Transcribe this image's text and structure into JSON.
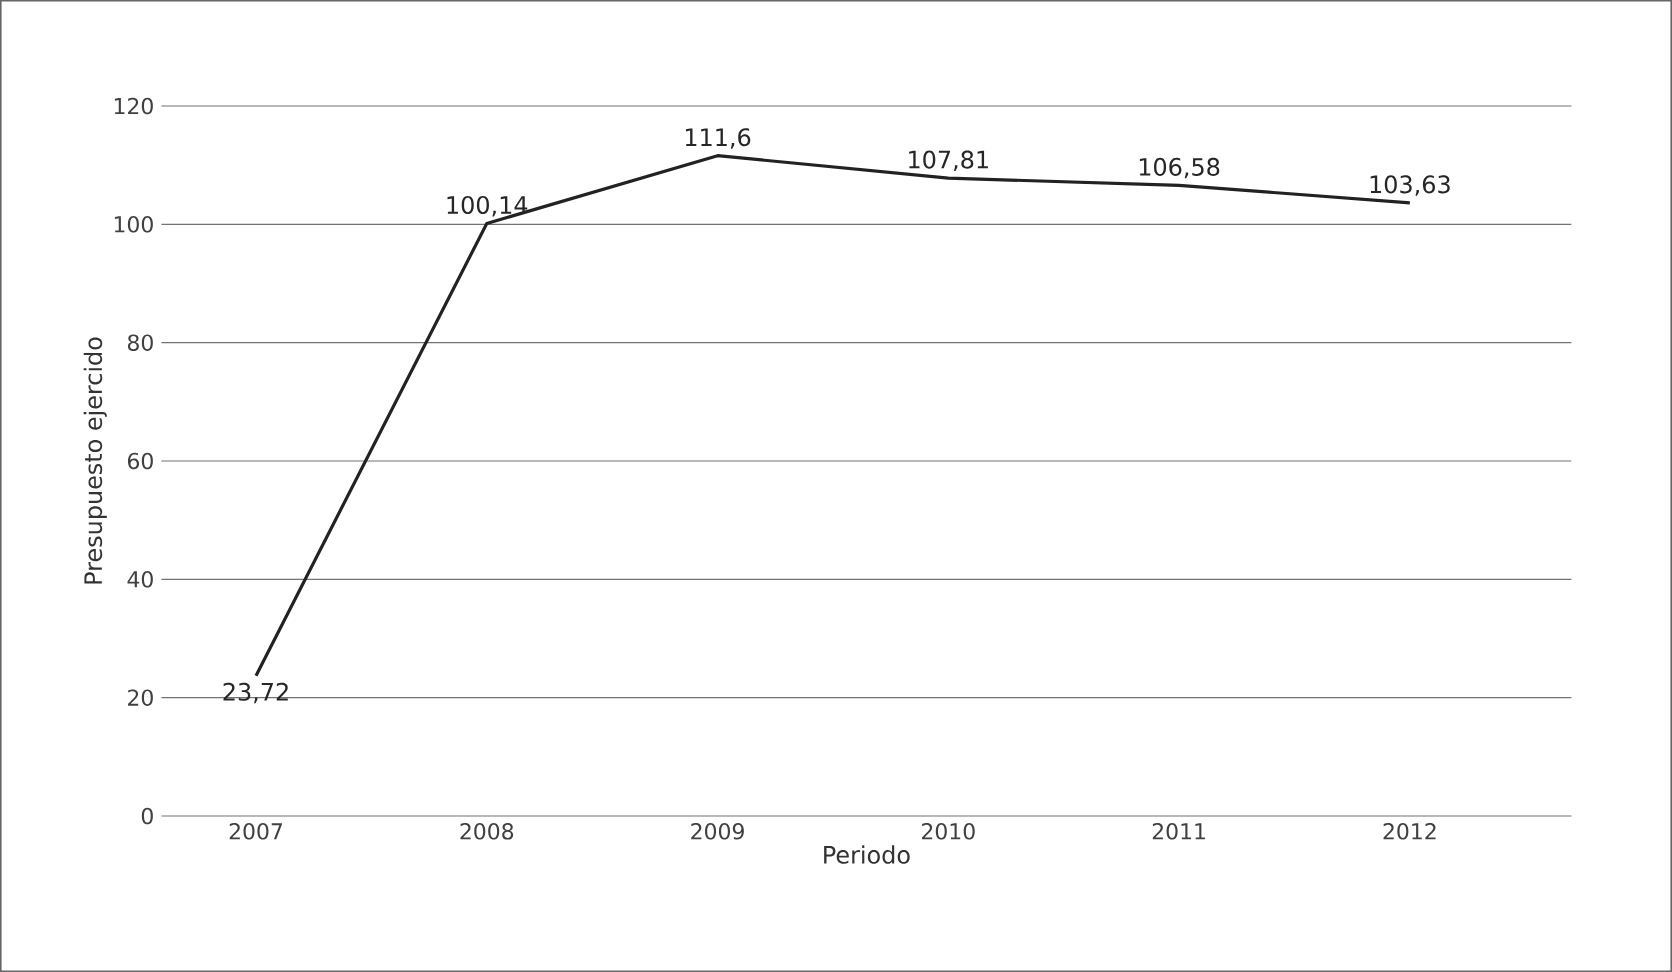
{
  "chart_data": {
    "type": "line",
    "xlabel": "Periodo",
    "ylabel": "Presupuesto ejercido",
    "categories": [
      "2007",
      "2008",
      "2009",
      "2010",
      "2011",
      "2012"
    ],
    "series": [
      {
        "color": "#222222",
        "values": [
          23.72,
          100.14,
          111.6,
          107.81,
          106.58,
          103.63
        ],
        "value_labels": [
          "23,72",
          "100,14",
          "111,6",
          "107,81",
          "106,58",
          "103,63"
        ]
      }
    ],
    "ylim": [
      0,
      120
    ],
    "yticks": [
      0,
      20,
      40,
      60,
      80,
      100,
      120
    ],
    "grid": "y",
    "marker": "none",
    "line_style": "solid"
  }
}
